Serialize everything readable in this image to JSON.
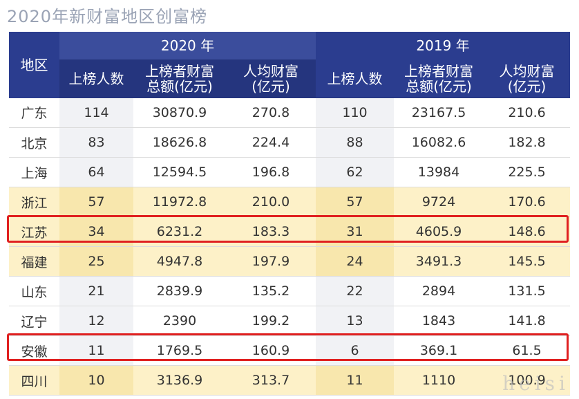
{
  "title": "2020年新财富地区创富榜",
  "table": {
    "region_header": "地区",
    "year_2020": "2020 年",
    "year_2019": "2019 年",
    "col_count": "上榜人数",
    "col_total_line1": "上榜者财富",
    "col_total_line2": "总额(亿元)",
    "col_avg_line1": "人均财富",
    "col_avg_line2": "(亿元)",
    "rows": [
      {
        "region": "广东",
        "c2020": "114",
        "t2020": "30870.9",
        "a2020": "270.8",
        "c2019": "110",
        "t2019": "23167.5",
        "a2019": "210.6"
      },
      {
        "region": "北京",
        "c2020": "83",
        "t2020": "18626.8",
        "a2020": "224.4",
        "c2019": "88",
        "t2019": "16082.6",
        "a2019": "182.8"
      },
      {
        "region": "上海",
        "c2020": "64",
        "t2020": "12594.5",
        "a2020": "196.8",
        "c2019": "62",
        "t2019": "13984",
        "a2019": "225.5"
      },
      {
        "region": "浙江",
        "c2020": "57",
        "t2020": "11972.8",
        "a2020": "210.0",
        "c2019": "57",
        "t2019": "9724",
        "a2019": "170.6"
      },
      {
        "region": "江苏",
        "c2020": "34",
        "t2020": "6231.2",
        "a2020": "183.3",
        "c2019": "31",
        "t2019": "4605.9",
        "a2019": "148.6"
      },
      {
        "region": "福建",
        "c2020": "25",
        "t2020": "4947.8",
        "a2020": "197.9",
        "c2019": "24",
        "t2019": "3491.3",
        "a2019": "145.5"
      },
      {
        "region": "山东",
        "c2020": "21",
        "t2020": "2839.9",
        "a2020": "135.2",
        "c2019": "22",
        "t2019": "2894",
        "a2019": "131.5"
      },
      {
        "region": "辽宁",
        "c2020": "12",
        "t2020": "2390",
        "a2020": "199.2",
        "c2019": "13",
        "t2019": "1843",
        "a2019": "141.8"
      },
      {
        "region": "安徽",
        "c2020": "11",
        "t2020": "1769.5",
        "a2020": "160.9",
        "c2019": "6",
        "t2019": "369.1",
        "a2019": "61.5"
      },
      {
        "region": "四川",
        "c2020": "10",
        "t2020": "3136.9",
        "a2020": "313.7",
        "c2019": "11",
        "t2019": "1110",
        "a2019": "100.9"
      }
    ]
  },
  "highlight_color": "#e02020",
  "watermark": "heisi"
}
